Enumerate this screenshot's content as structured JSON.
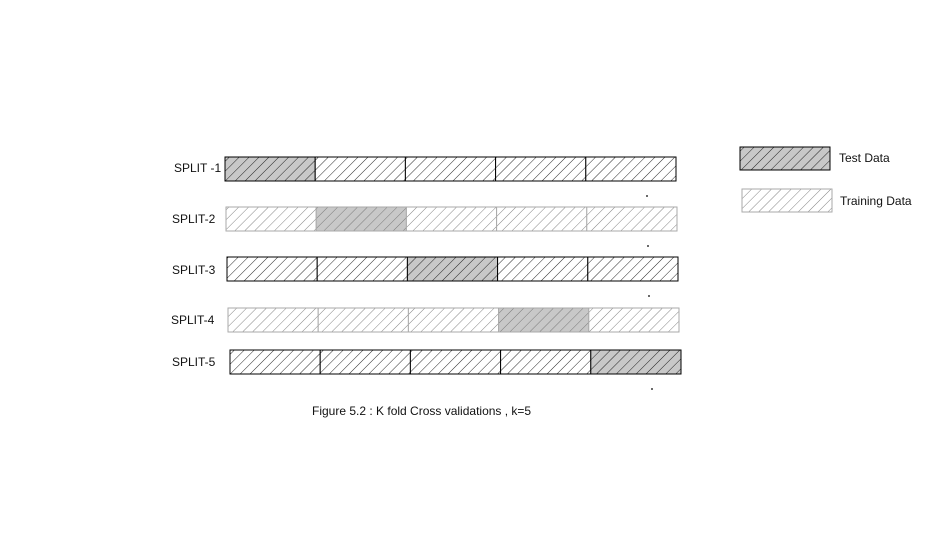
{
  "figure": {
    "caption": "Figure 5.2 :  K fold Cross validations , k=5",
    "k": 5
  },
  "legend": {
    "test_label": "Test Data",
    "training_label": "Training Data"
  },
  "colors": {
    "test_fill": "#c8c8c8",
    "training_fill": "#ffffff",
    "hatch_dark": "#111111",
    "hatch_light": "#555555",
    "border_dark": "#000000",
    "border_light": "#aaaaaa"
  },
  "splits": [
    {
      "label": "SPLIT -1",
      "test_fold": 1,
      "style": "dark"
    },
    {
      "label": "SPLIT-2",
      "test_fold": 2,
      "style": "light"
    },
    {
      "label": "SPLIT-3",
      "test_fold": 3,
      "style": "dark"
    },
    {
      "label": "SPLIT-4",
      "test_fold": 4,
      "style": "light"
    },
    {
      "label": "SPLIT-5",
      "test_fold": 5,
      "style": "dark"
    }
  ]
}
